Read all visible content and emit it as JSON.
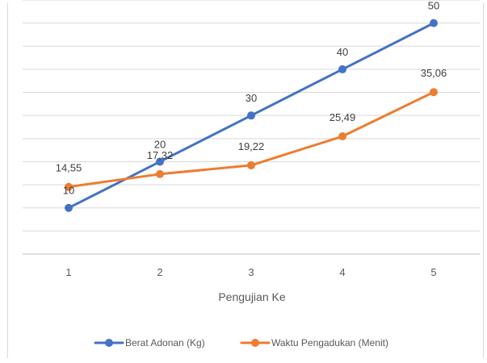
{
  "chart_data": {
    "type": "line",
    "title": "",
    "xlabel": "Pengujian Ke",
    "ylabel": "",
    "categories": [
      "1",
      "2",
      "3",
      "4",
      "5"
    ],
    "ylim": [
      0,
      55
    ],
    "grid": true,
    "legend_position": "bottom",
    "series": [
      {
        "name": "Berat Adonan (Kg)",
        "color": "#4472C4",
        "values": [
          10,
          20,
          30,
          40,
          50
        ],
        "labels": [
          "10",
          "20",
          "30",
          "40",
          "50"
        ]
      },
      {
        "name": "Waktu Pengadukan (Menit)",
        "color": "#ED7D31",
        "values": [
          14.55,
          17.32,
          19.22,
          25.49,
          35.06
        ],
        "labels": [
          "14,55",
          "17,32",
          "19,22",
          "25,49",
          "35,06"
        ]
      }
    ]
  }
}
